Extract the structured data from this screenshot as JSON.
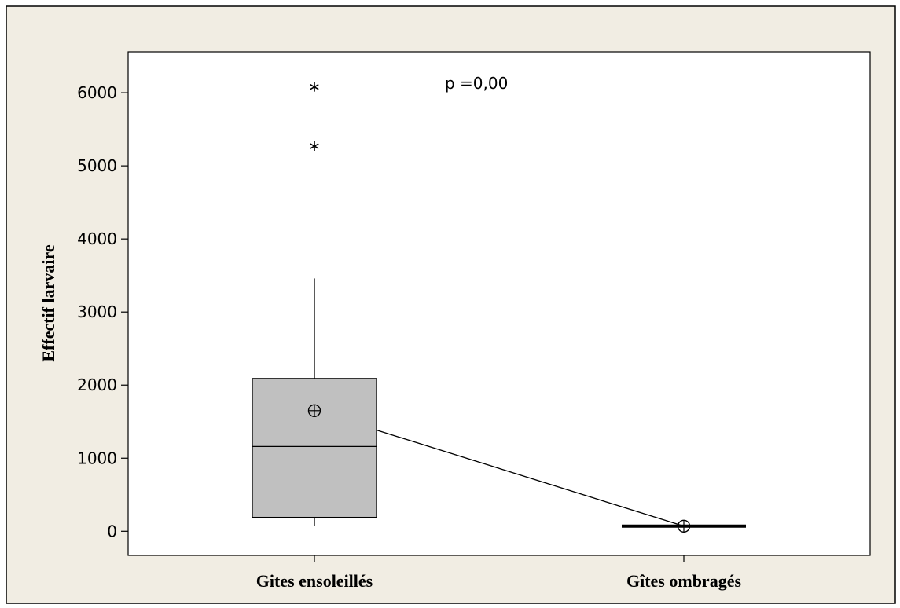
{
  "chart_data": {
    "type": "boxplot",
    "title": "",
    "xlabel": "",
    "ylabel": "Effectif larvaire",
    "categories": [
      "Gites ensoleillés",
      "Gîtes ombragés"
    ],
    "ylim": [
      -330,
      6560
    ],
    "yticks": [
      0,
      1000,
      2000,
      3000,
      4000,
      5000,
      6000
    ],
    "boxes": [
      {
        "category": "Gites ensoleillés",
        "whisker_low": 70,
        "q1": 190,
        "median": 1160,
        "q3": 2090,
        "whisker_high": 3460,
        "mean": 1650,
        "outliers": [
          5270,
          6080
        ]
      },
      {
        "category": "Gîtes ombragés",
        "whisker_low": 65,
        "q1": 65,
        "median": 70,
        "q3": 75,
        "whisker_high": 75,
        "mean": 70,
        "outliers": []
      }
    ],
    "mean_connect_line": true,
    "annotation": "p =0,00",
    "grid": false,
    "colors": {
      "outer_bg": "#f1ede3",
      "plot_bg": "#ffffff",
      "box_fill": "#c0c0c0",
      "line": "#000000"
    }
  }
}
